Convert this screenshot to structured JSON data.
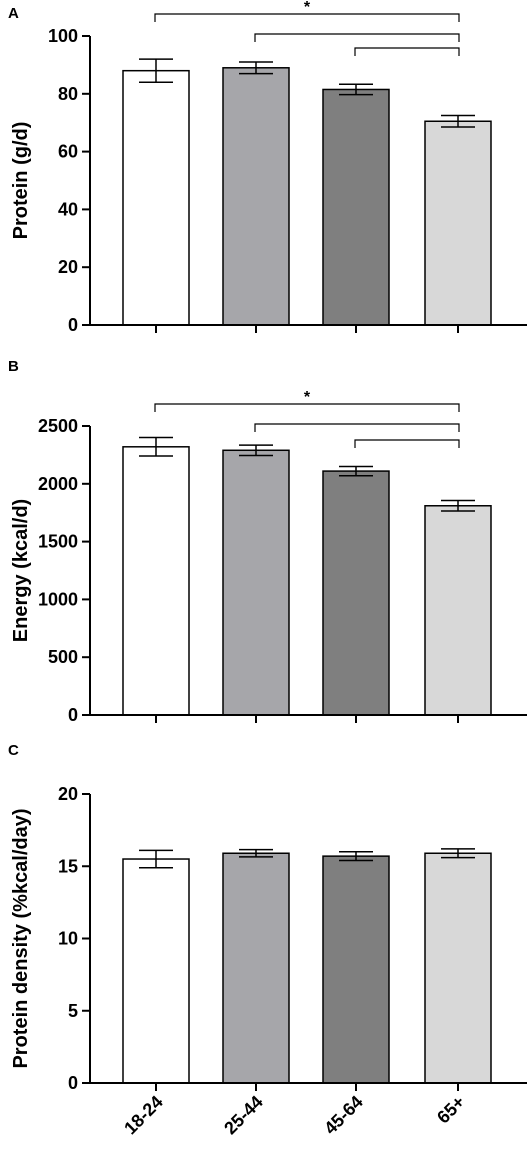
{
  "categories": [
    "18-24",
    "25-44",
    "45-64",
    "65+"
  ],
  "colors": {
    "bar_fills": [
      "#ffffff",
      "#a6a6aa",
      "#7f7f7f",
      "#d8d8d8"
    ],
    "stroke": "#000000"
  },
  "chart_data": [
    {
      "type": "bar",
      "panel": "A",
      "ylabel": "Protein (g/d)",
      "ylim": [
        0,
        100
      ],
      "yticks": [
        0,
        20,
        40,
        60,
        80,
        100
      ],
      "tick_labels": [
        "0",
        "20",
        "40",
        "60",
        "80",
        "100"
      ],
      "categories": [
        "18-24",
        "25-44",
        "45-64",
        "65+"
      ],
      "values": [
        88,
        89,
        81.5,
        70.5
      ],
      "errors": [
        4,
        2,
        1.8,
        2
      ],
      "significance": {
        "label": "*",
        "comparisons": [
          [
            0,
            3
          ],
          [
            1,
            3
          ],
          [
            2,
            3
          ]
        ]
      }
    },
    {
      "type": "bar",
      "panel": "B",
      "ylabel": "Energy (kcal/d)",
      "ylim": [
        0,
        2500
      ],
      "yticks": [
        0,
        500,
        1000,
        1500,
        2000,
        2500
      ],
      "tick_labels": [
        "0",
        "500",
        "1000",
        "1500",
        "2000",
        "2500"
      ],
      "categories": [
        "18-24",
        "25-44",
        "45-64",
        "65+"
      ],
      "values": [
        2320,
        2290,
        2110,
        1810
      ],
      "errors": [
        80,
        45,
        40,
        45
      ],
      "significance": {
        "label": "*",
        "comparisons": [
          [
            0,
            3
          ],
          [
            1,
            3
          ],
          [
            2,
            3
          ]
        ]
      }
    },
    {
      "type": "bar",
      "panel": "C",
      "ylabel": "Protein density (%kcal/day)",
      "ylim": [
        0,
        20
      ],
      "yticks": [
        0,
        5,
        10,
        15,
        20
      ],
      "tick_labels": [
        "0",
        "5",
        "10",
        "15",
        "20"
      ],
      "categories": [
        "18-24",
        "25-44",
        "45-64",
        "65+"
      ],
      "values": [
        15.5,
        15.9,
        15.7,
        15.9
      ],
      "errors": [
        0.6,
        0.25,
        0.3,
        0.3
      ],
      "significance": null
    }
  ]
}
